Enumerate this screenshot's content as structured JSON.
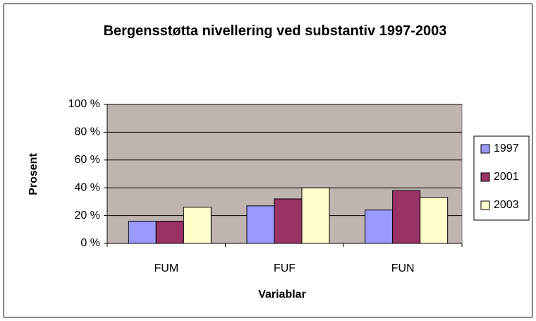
{
  "chart_data": {
    "type": "bar",
    "title": "Bergensstøtta nivellering ved substantiv 1997-2003",
    "xlabel": "Variablar",
    "ylabel": "Prosent",
    "categories": [
      "FUM",
      "FUF",
      "FUN"
    ],
    "series": [
      {
        "name": "1997",
        "color": "#9999ff",
        "values": [
          16,
          27,
          24
        ]
      },
      {
        "name": "2001",
        "color": "#993366",
        "values": [
          16,
          32,
          38
        ]
      },
      {
        "name": "2003",
        "color": "#ffffcc",
        "values": [
          26,
          40,
          33
        ]
      }
    ],
    "ylim": [
      0,
      100
    ],
    "yticks": [
      {
        "value": 0,
        "label": "0 %"
      },
      {
        "value": 20,
        "label": "20 %"
      },
      {
        "value": 40,
        "label": "40 %"
      },
      {
        "value": 60,
        "label": "60 %"
      },
      {
        "value": 80,
        "label": "80 %"
      },
      {
        "value": 100,
        "label": "100 %"
      }
    ],
    "grid": true,
    "legend": "right",
    "plot_background": "#c0b4b0"
  }
}
